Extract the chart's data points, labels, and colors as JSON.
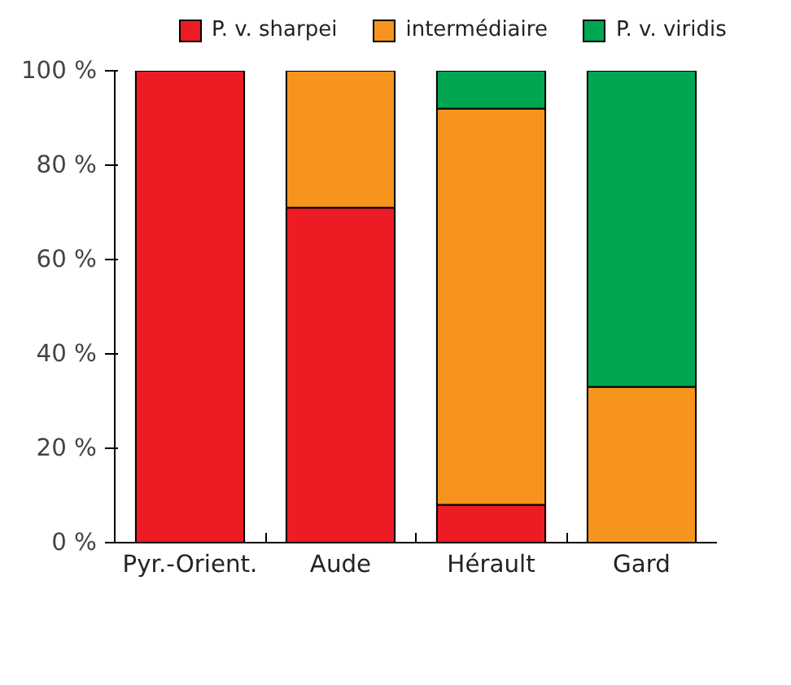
{
  "chart_data": {
    "type": "bar",
    "stacked": true,
    "categories": [
      "Pyr.-Orient.",
      "Aude",
      "Hérault",
      "Gard"
    ],
    "series": [
      {
        "name": "P. v. sharpei",
        "color": "#ed1c24",
        "values": [
          100,
          71,
          8,
          0
        ]
      },
      {
        "name": "intermédiaire",
        "color": "#f7941d",
        "values": [
          0,
          29,
          84,
          33
        ]
      },
      {
        "name": "P. v. viridis",
        "color": "#00a651",
        "values": [
          0,
          0,
          8,
          67
        ]
      }
    ],
    "ylim": [
      0,
      100
    ],
    "yticks": [
      {
        "value": 0,
        "label": "0 %"
      },
      {
        "value": 20,
        "label": "20 %"
      },
      {
        "value": 40,
        "label": "40 %"
      },
      {
        "value": 60,
        "label": "60 %"
      },
      {
        "value": 80,
        "label": "80 %"
      },
      {
        "value": 100,
        "label": "100 %"
      }
    ],
    "grid": false,
    "legend": "top"
  }
}
